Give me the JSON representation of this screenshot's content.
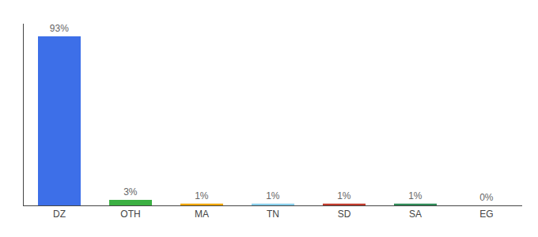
{
  "chart_data": {
    "type": "bar",
    "categories": [
      "DZ",
      "OTH",
      "MA",
      "TN",
      "SD",
      "SA",
      "EG"
    ],
    "values": [
      93,
      3,
      1,
      1,
      1,
      1,
      0
    ],
    "value_labels": [
      "93%",
      "3%",
      "1%",
      "1%",
      "1%",
      "1%",
      "0%"
    ],
    "colors": [
      "#3d6fe8",
      "#3cb043",
      "#f0a500",
      "#87ceeb",
      "#c0392b",
      "#2e8b57",
      "#aaaaaa"
    ],
    "ylim": [
      0,
      100
    ],
    "data_labels": true,
    "tick_labels": "x",
    "grid": false
  }
}
